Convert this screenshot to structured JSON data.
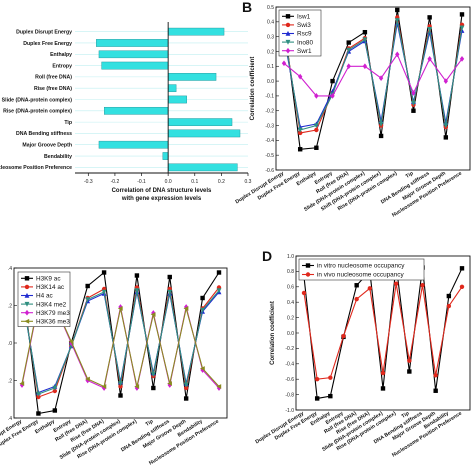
{
  "chart_data": [
    {
      "id": "A",
      "type": "bar",
      "orientation": "horizontal",
      "letter": "",
      "categories": [
        "Duplex Disrupt Energy",
        "Duplex Free Energy",
        "Enthalpy",
        "Entropy",
        "Roll (free DNA)",
        "Rise (free DNA)",
        "Slide (DNA-protein complex)",
        "Rise (DNA-protein complex)",
        "Tip",
        "DNA Bending stiffness",
        "Major Groove Depth",
        "Bendability",
        "Nucleosome Position Preference"
      ],
      "values": [
        0.21,
        -0.27,
        -0.26,
        -0.25,
        0.18,
        0.03,
        0.07,
        -0.24,
        0.24,
        0.27,
        -0.26,
        -0.02,
        0.26
      ],
      "xlabel": "Correlation of DNA structure levels with gene expression levels",
      "xlim": [
        -0.35,
        0.3
      ],
      "xticks": [
        "-0.3",
        "-0.2",
        "-0.1",
        "0.0",
        "0.1",
        "0.2",
        "0.3"
      ],
      "bar_color": "#33e0e0"
    },
    {
      "id": "B",
      "type": "line",
      "letter": "B",
      "ylabel": "Correlation coefficient",
      "ylim": [
        -0.6,
        0.5
      ],
      "yticks": [
        "0.5",
        "0.4",
        "0.3",
        "0.2",
        "0.1",
        "0.0",
        "-0.1",
        "-0.2",
        "-0.3",
        "-0.4",
        "-0.5",
        "-0.6"
      ],
      "categories": [
        "Duplex Disrupt Energy",
        "Duplex Free Energy",
        "Enthalpy",
        "Entropy",
        "Roll (free DNA)",
        "Slide (DNA-protein complex)",
        "Shift (DNA-protein complex)",
        "Rise (DNA-protein complex)",
        "Tip",
        "DNA Bending stiffness",
        "Major Groove Depth",
        "Nucleosome Position Preference"
      ],
      "series": [
        {
          "name": "Isw1",
          "color": "#000000",
          "marker": "square",
          "values": [
            0.4,
            -0.46,
            -0.45,
            0.0,
            0.26,
            0.33,
            -0.37,
            0.48,
            -0.2,
            0.43,
            -0.38,
            0.45
          ]
        },
        {
          "name": "Swi3",
          "color": "#e0281c",
          "marker": "circle",
          "values": [
            0.35,
            -0.35,
            -0.33,
            -0.08,
            0.22,
            0.29,
            -0.3,
            0.43,
            -0.16,
            0.37,
            -0.31,
            0.38
          ]
        },
        {
          "name": "Rsc9",
          "color": "#1f2ad0",
          "marker": "triangle",
          "values": [
            0.3,
            -0.31,
            -0.29,
            -0.07,
            0.2,
            0.27,
            -0.27,
            0.39,
            -0.14,
            0.33,
            -0.28,
            0.34
          ]
        },
        {
          "name": "Ino80",
          "color": "#2f8f80",
          "marker": "triangle-down",
          "values": [
            0.33,
            -0.33,
            -0.3,
            -0.09,
            0.21,
            0.28,
            -0.29,
            0.41,
            -0.15,
            0.35,
            -0.3,
            0.36
          ]
        },
        {
          "name": "Swr1",
          "color": "#d020d0",
          "marker": "diamond",
          "values": [
            0.12,
            0.03,
            -0.1,
            -0.1,
            0.1,
            0.1,
            0.02,
            0.18,
            -0.08,
            0.15,
            0.0,
            0.15
          ]
        }
      ]
    },
    {
      "id": "C",
      "type": "line",
      "letter": "",
      "ylabel": "",
      "ylim": [
        -0.5,
        0.5
      ],
      "yticks": [
        ".4",
        ".2",
        ".0",
        ".2",
        ".4"
      ],
      "categories": [
        "Duplex Disrupt Energy",
        "Duplex Free Energy",
        "Enthalpy",
        "Entropy",
        "Roll (free DNA)",
        "Rise (free DNA)",
        "Slide (DNA-protein complex)",
        "Rise (DNA-protein complex)",
        "Tip",
        "DNA Bending stiffness",
        "Major Groove Depth",
        "Bendability",
        "Nucleosome Position Preference"
      ],
      "series": [
        {
          "name": "H3K9 ac",
          "color": "#000000",
          "marker": "square",
          "values": [
            0.43,
            -0.47,
            -0.45,
            0.0,
            0.38,
            0.47,
            -0.35,
            0.45,
            -0.3,
            0.44,
            -0.37,
            0.3,
            0.47
          ]
        },
        {
          "name": "H3K14 ac",
          "color": "#e0281c",
          "marker": "circle",
          "values": [
            0.35,
            -0.36,
            -0.32,
            -0.02,
            0.3,
            0.36,
            -0.29,
            0.37,
            -0.22,
            0.36,
            -0.3,
            0.23,
            0.37
          ]
        },
        {
          "name": "H4 ac",
          "color": "#1f2ad0",
          "marker": "triangle",
          "values": [
            0.32,
            -0.33,
            -0.29,
            -0.02,
            0.28,
            0.33,
            -0.26,
            0.34,
            -0.2,
            0.33,
            -0.27,
            0.21,
            0.34
          ]
        },
        {
          "name": "H3K4 me2",
          "color": "#2f8f80",
          "marker": "triangle-down",
          "values": [
            0.33,
            -0.34,
            -0.3,
            -0.02,
            0.29,
            0.34,
            -0.27,
            0.35,
            -0.21,
            0.34,
            -0.28,
            0.22,
            0.35
          ]
        },
        {
          "name": "H3K79 me3",
          "color": "#d020d0",
          "marker": "diamond",
          "values": [
            -0.28,
            0.26,
            0.25,
            0.0,
            -0.25,
            -0.3,
            0.24,
            -0.3,
            0.2,
            -0.28,
            0.24,
            -0.18,
            -0.3
          ]
        },
        {
          "name": "H3K36 me3",
          "color": "#8a8a20",
          "marker": "triangle-left",
          "values": [
            -0.27,
            0.27,
            0.25,
            0.01,
            -0.24,
            -0.29,
            0.23,
            -0.29,
            0.19,
            -0.27,
            0.23,
            -0.17,
            -0.29
          ]
        }
      ]
    },
    {
      "id": "D",
      "type": "line",
      "letter": "D",
      "ylabel": "Correlation coefficient",
      "ylim": [
        -1.0,
        1.0
      ],
      "yticks": [
        "1.0",
        "0.8",
        "0.6",
        "0.4",
        "0.2",
        "0.0",
        "-0.2",
        "-0.4",
        "-0.6",
        "-0.8",
        "-1.0"
      ],
      "categories": [
        "Duplex Disrupt Energy",
        "Duplex Free Energy",
        "Enthalpy",
        "Entropy",
        "Roll (free DNA)",
        "Rise (free DNA)",
        "Slide (DNA-protein complex)",
        "Rise (DNA-protein complex)",
        "Tip",
        "DNA Bending stiffness",
        "Major Groove Depth",
        "Bendability",
        "Nucleosome Position Preference"
      ],
      "series": [
        {
          "name": "in vitro nucleosome occupancy",
          "color": "#000000",
          "marker": "square",
          "values": [
            0.73,
            -0.85,
            -0.82,
            -0.05,
            0.62,
            0.8,
            -0.72,
            0.88,
            -0.5,
            0.85,
            -0.75,
            0.48,
            0.84
          ]
        },
        {
          "name": "in vivo nucleosome occupancy",
          "color": "#e0281c",
          "marker": "circle",
          "values": [
            0.52,
            -0.6,
            -0.58,
            -0.04,
            0.44,
            0.58,
            -0.52,
            0.64,
            -0.36,
            0.62,
            -0.55,
            0.35,
            0.6
          ]
        }
      ]
    }
  ]
}
